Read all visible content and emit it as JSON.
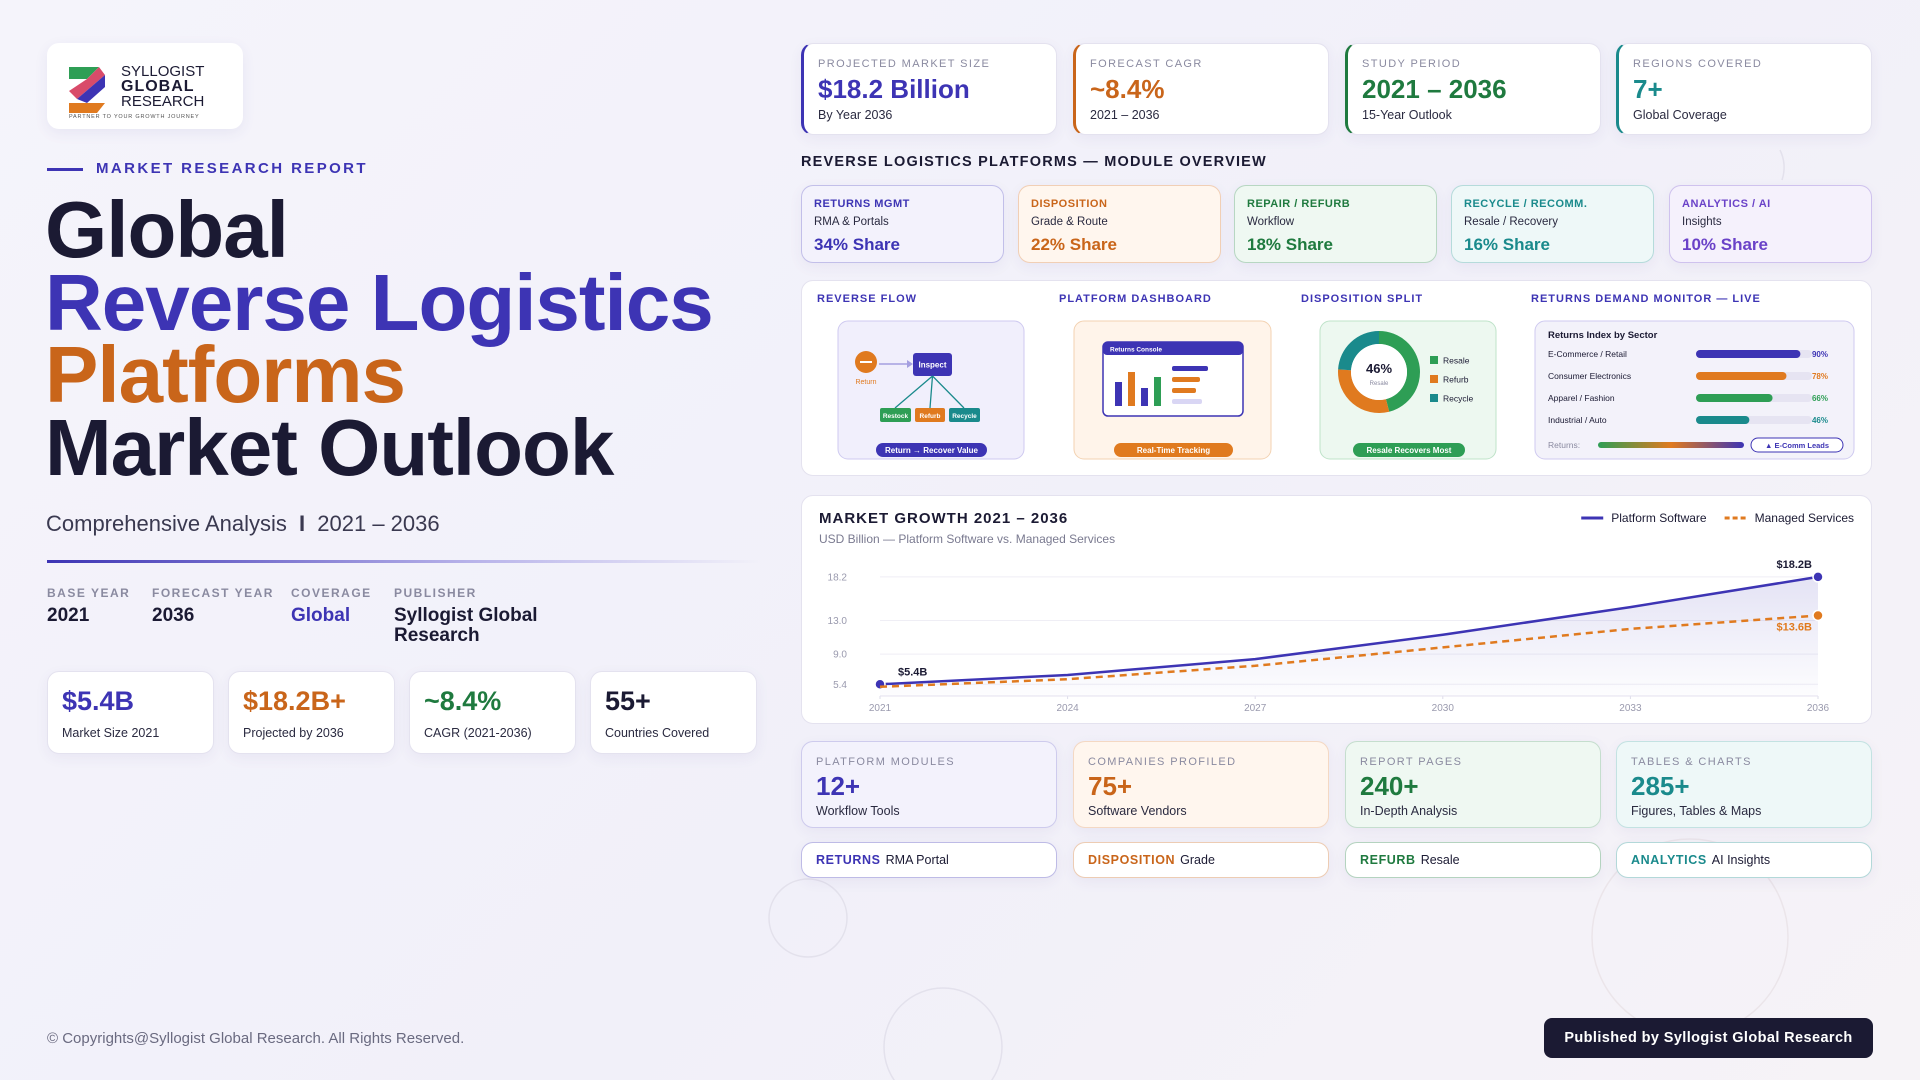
{
  "logo": {
    "line1": "SYLLOGIST",
    "line2": "GLOBAL",
    "line3": "RESEARCH",
    "tagline": "PARTNER TO YOUR GROWTH JOURNEY"
  },
  "report_label": "MARKET RESEARCH REPORT",
  "title": {
    "line1": "Global",
    "line2": "Reverse Logistics",
    "line3": "Platforms",
    "line4": "Market Outlook"
  },
  "subtitle": {
    "text": "Comprehensive Analysis",
    "separator": "I",
    "period": "2021 – 2036"
  },
  "meta": [
    {
      "label": "BASE YEAR",
      "value": "2021"
    },
    {
      "label": "FORECAST YEAR",
      "value": "2036"
    },
    {
      "label": "COVERAGE",
      "value": "Global"
    },
    {
      "label": "PUBLISHER",
      "value": "Syllogist Global Research"
    }
  ],
  "left_stats": [
    {
      "value": "$5.4B",
      "label": "Market Size 2021"
    },
    {
      "value": "$18.2B+",
      "label": "Projected by 2036"
    },
    {
      "value": "~8.4%",
      "label": "CAGR (2021-2036)"
    },
    {
      "value": "55+",
      "label": "Countries Covered"
    }
  ],
  "top_kpis": [
    {
      "label": "PROJECTED MARKET SIZE",
      "value": "$18.2 Billion",
      "note": "By Year 2036"
    },
    {
      "label": "FORECAST CAGR",
      "value": "~8.4%",
      "note": "2021 – 2036"
    },
    {
      "label": "STUDY PERIOD",
      "value": "2021 – 2036",
      "note": "15-Year Outlook"
    },
    {
      "label": "REGIONS COVERED",
      "value": "7+",
      "note": "Global Coverage"
    }
  ],
  "modules_title": "REVERSE LOGISTICS PLATFORMS — MODULE OVERVIEW",
  "modules": [
    {
      "name": "RETURNS MGMT",
      "desc": "RMA & Portals",
      "share": "34% Share"
    },
    {
      "name": "DISPOSITION",
      "desc": "Grade & Route",
      "share": "22% Share"
    },
    {
      "name": "REPAIR / REFURB",
      "desc": "Workflow",
      "share": "18% Share"
    },
    {
      "name": "RECYCLE / RECOMM.",
      "desc": "Resale / Recovery",
      "share": "16% Share"
    },
    {
      "name": "ANALYTICS / AI",
      "desc": "Insights",
      "share": "10% Share"
    }
  ],
  "panels": {
    "flow": {
      "title": "REVERSE FLOW",
      "start": "Return",
      "hub": "Inspect",
      "outcomes": [
        "Restock",
        "Refurb",
        "Recycle"
      ],
      "caption": "Return → Recover Value"
    },
    "dashboard": {
      "title": "PLATFORM DASHBOARD",
      "window": "Returns Console",
      "caption": "Real-Time Tracking"
    },
    "split": {
      "title": "DISPOSITION SPLIT",
      "caption": "Resale Recovers Most"
    },
    "monitor": {
      "title": "RETURNS DEMAND MONITOR — LIVE",
      "returns_label": "Returns:",
      "badge": "▲ E-Comm Leads"
    }
  },
  "chart_data": [
    {
      "type": "line",
      "title": "MARKET GROWTH 2021 – 2036",
      "subtitle": "USD Billion — Platform Software vs. Managed Services",
      "x": [
        2021,
        2024,
        2027,
        2030,
        2033,
        2036
      ],
      "series": [
        {
          "name": "Platform Software",
          "color": "#3d34b4",
          "dashed": false,
          "values": [
            5.4,
            6.5,
            8.4,
            11.3,
            14.6,
            18.2
          ],
          "value_labels": [
            "$5.4B",
            null,
            null,
            null,
            null,
            "$18.2B"
          ]
        },
        {
          "name": "Managed Services",
          "color": "#e07a1f",
          "dashed": true,
          "values": [
            5.1,
            6.0,
            7.6,
            9.8,
            12.0,
            13.6
          ],
          "value_labels": [
            null,
            null,
            null,
            null,
            null,
            "$13.6B"
          ]
        }
      ],
      "xlim": [
        2021,
        2036
      ],
      "xticks": [
        2021,
        2024,
        2027,
        2030,
        2033,
        2036
      ],
      "ylim": [
        4,
        19.5
      ],
      "yticks": [
        5.4,
        {
          "value": 9,
          "label": "9.0"
        },
        {
          "value": 13,
          "label": "13.0"
        },
        18.2
      ],
      "grid": true,
      "legend": "top-right"
    },
    {
      "type": "bar",
      "orientation": "horizontal",
      "title": "Returns Index by Sector",
      "categories": [
        "E-Commerce / Retail",
        "Consumer Electronics",
        "Apparel / Fashion",
        "Industrial / Auto"
      ],
      "values": [
        90,
        78,
        66,
        46
      ],
      "value_labels": [
        "90%",
        "78%",
        "66%",
        "46%"
      ],
      "colors": [
        "#3d34b4",
        "#e07a1f",
        "#2e9e55",
        "#1a8a8c"
      ],
      "xlim": [
        0,
        100
      ]
    },
    {
      "type": "pie",
      "donut": true,
      "categories": [
        "Resale",
        "Refurb",
        "Recycle"
      ],
      "values": [
        46,
        30,
        24
      ],
      "value_labels": [
        "46%",
        null,
        null
      ],
      "colors": [
        "#2e9e55",
        "#e07a1f",
        "#1a8a8c"
      ]
    }
  ],
  "bottom_stats": [
    {
      "label": "PLATFORM MODULES",
      "value": "12+",
      "note": "Workflow Tools"
    },
    {
      "label": "COMPANIES PROFILED",
      "value": "75+",
      "note": "Software Vendors"
    },
    {
      "label": "REPORT PAGES",
      "value": "240+",
      "note": "In-Depth Analysis"
    },
    {
      "label": "TABLES & CHARTS",
      "value": "285+",
      "note": "Figures, Tables & Maps"
    }
  ],
  "tags": [
    {
      "key": "RETURNS",
      "text": "RMA Portal"
    },
    {
      "key": "DISPOSITION",
      "text": "Grade"
    },
    {
      "key": "REFURB",
      "text": "Resale"
    },
    {
      "key": "ANALYTICS",
      "text": "AI Insights"
    }
  ],
  "footer": {
    "copyright": "© Copyrights@Syllogist Global Research. All Rights Reserved.",
    "badge": "Published by Syllogist Global Research"
  }
}
